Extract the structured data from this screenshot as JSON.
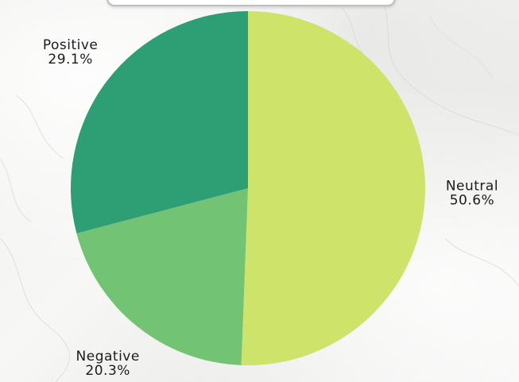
{
  "chart_data": {
    "type": "pie",
    "title": "",
    "slices": [
      {
        "name": "Neutral",
        "value": 50.6,
        "percent_label": "50.6%",
        "color": "#cde36a"
      },
      {
        "name": "Negative",
        "value": 20.3,
        "percent_label": "20.3%",
        "color": "#72c474"
      },
      {
        "name": "Positive",
        "value": 29.1,
        "percent_label": "29.1%",
        "color": "#2e9e74"
      }
    ],
    "start_angle_deg": 0,
    "direction": "clockwise",
    "legend": "none",
    "labels": "outside"
  }
}
